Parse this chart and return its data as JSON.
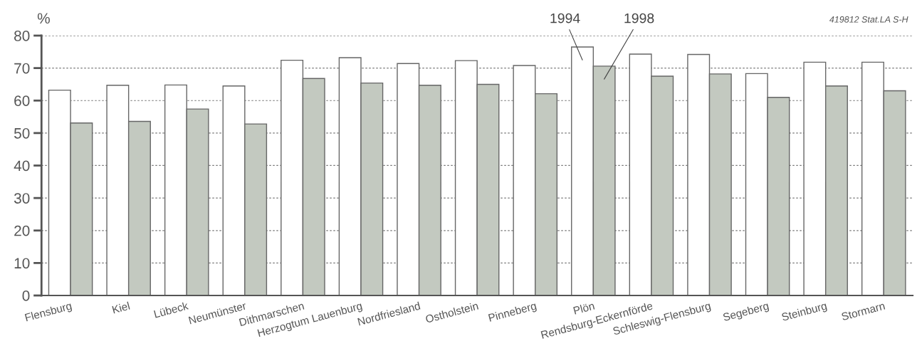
{
  "chart_data": {
    "type": "bar",
    "categories": [
      "Flensburg",
      "Kiel",
      "Lübeck",
      "Neumünster",
      "Dithmarschen",
      "Herzogtum Lauenburg",
      "Nordfriesland",
      "Ostholstein",
      "Pinneberg",
      "Plön",
      "Rendsburg-Eckernförde",
      "Schleswig-Flensburg",
      "Segeberg",
      "Steinburg",
      "Stormarn"
    ],
    "series": [
      {
        "name": "1994",
        "color": "#ffffff",
        "values": [
          63.2,
          64.7,
          64.8,
          64.5,
          72.4,
          73.2,
          71.4,
          72.3,
          70.8,
          76.5,
          74.3,
          74.2,
          68.3,
          71.8,
          71.8
        ]
      },
      {
        "name": "1998",
        "color": "#c3c9c0",
        "values": [
          53.1,
          53.6,
          57.4,
          52.8,
          66.8,
          65.4,
          64.7,
          65.0,
          62.1,
          70.6,
          67.5,
          68.2,
          61.0,
          64.5,
          63.0
        ]
      }
    ],
    "ylabel": "%",
    "ylim": [
      0,
      80
    ],
    "yticks": [
      0,
      10,
      20,
      30,
      40,
      50,
      60,
      70,
      80
    ],
    "grid": "y",
    "annotations": [
      "419812 Stat.LA S-H"
    ]
  }
}
